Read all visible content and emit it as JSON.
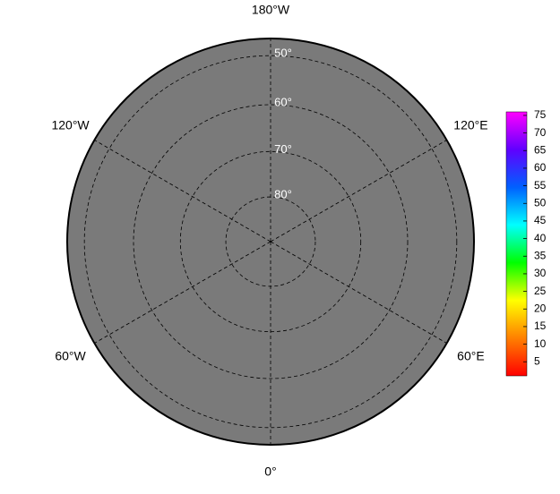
{
  "map_data": {
    "longitudes": [
      {
        "value": 180,
        "label": "180°W"
      },
      {
        "value": -120,
        "label": "120°W"
      },
      {
        "value": 120,
        "label": "120°E"
      },
      {
        "value": -60,
        "label": "60°W"
      },
      {
        "value": 60,
        "label": "60°E"
      },
      {
        "value": 0,
        "label": "0°"
      }
    ],
    "latitudes": [
      {
        "value": 50,
        "label": "50°"
      },
      {
        "value": 60,
        "label": "60°"
      },
      {
        "value": 70,
        "label": "70°"
      },
      {
        "value": 80,
        "label": "80°"
      }
    ],
    "colorbar": {
      "lim": [
        1,
        76
      ],
      "ticks": [
        5,
        10,
        15,
        20,
        25,
        30,
        35,
        40,
        45,
        50,
        55,
        60,
        65,
        70,
        75
      ],
      "colors": [
        "#ff0000",
        "#ff8000",
        "#ffff00",
        "#00ff00",
        "#00ffff",
        "#0060ff",
        "#6000ff",
        "#ff00ff"
      ]
    }
  }
}
